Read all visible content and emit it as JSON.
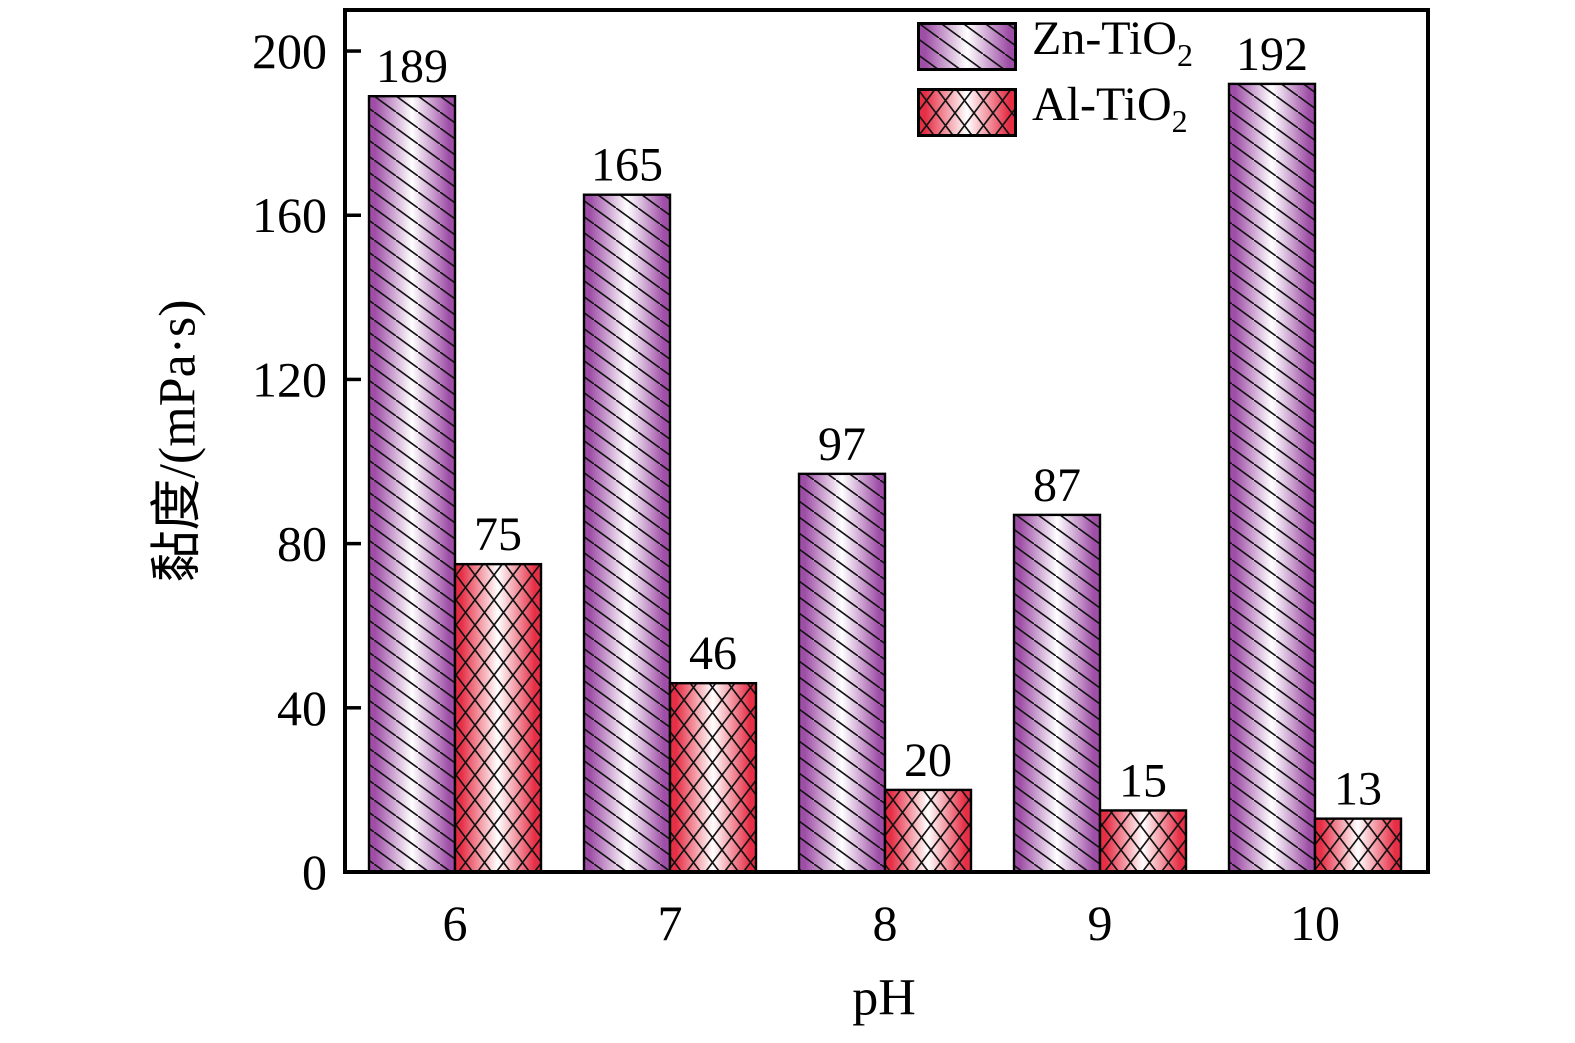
{
  "chart_data": {
    "type": "bar",
    "title": "",
    "xlabel": "pH",
    "ylabel": "黏度/(mPa·s)",
    "categories": [
      "6",
      "7",
      "8",
      "9",
      "10"
    ],
    "series": [
      {
        "name": "Zn-TiO2",
        "name_main": "Zn-TiO",
        "name_sub": "2",
        "values": [
          189,
          165,
          97,
          87,
          192
        ],
        "edge_color": "#9e4ea6",
        "center_color": "#ffffff",
        "hatch": "diagonal"
      },
      {
        "name": "Al-TiO2",
        "name_main": "Al-TiO",
        "name_sub": "2",
        "values": [
          75,
          46,
          20,
          15,
          13
        ],
        "edge_color": "#e62e45",
        "center_color": "#ffffff",
        "hatch": "crosshatch"
      }
    ],
    "ylim": [
      0,
      210
    ],
    "yticks": [
      0,
      40,
      80,
      120,
      160,
      200
    ],
    "grid": false,
    "bar_value_labels_shown": true,
    "legend_position": "top-right-inside",
    "colors": {
      "axis": "#000000",
      "text": "#000000",
      "hatch_line": "#141414"
    }
  }
}
